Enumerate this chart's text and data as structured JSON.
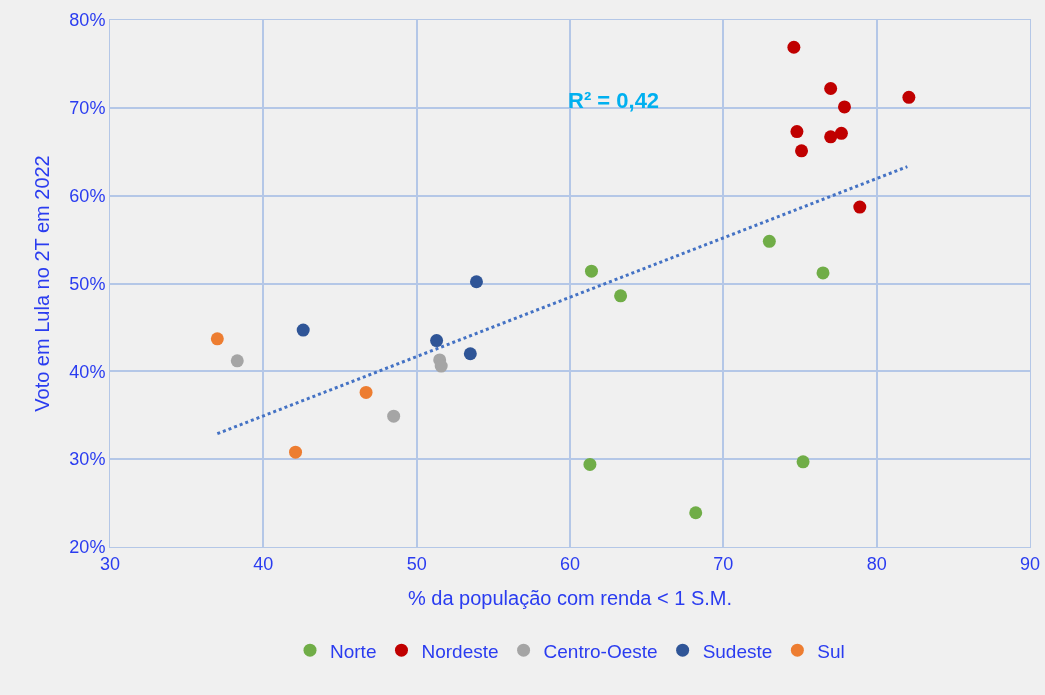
{
  "chart_data": {
    "type": "scatter",
    "xlabel": "% da população com renda < 1 S.M.",
    "ylabel": "Voto em Lula no 2T em 2022",
    "xlim": [
      30,
      90
    ],
    "xticks": [
      30,
      40,
      50,
      60,
      70,
      80,
      90
    ],
    "ylim": [
      20,
      80
    ],
    "yticks": [
      {
        "value": 20,
        "label": "20%"
      },
      {
        "value": 30,
        "label": "30%"
      },
      {
        "value": 40,
        "label": "40%"
      },
      {
        "value": 50,
        "label": "50%"
      },
      {
        "value": 60,
        "label": "60%"
      },
      {
        "value": 70,
        "label": "70%"
      },
      {
        "value": 80,
        "label": "80%"
      }
    ],
    "grid": true,
    "legend": "bottom",
    "marker": "circle",
    "annotations": [
      "R² = 0,42"
    ],
    "series": [
      {
        "name": "Norte",
        "color": "#70ad47",
        "x": [
          61.4,
          63.3,
          73.0,
          76.5,
          61.3,
          68.2,
          75.2
        ],
        "values": [
          51.4,
          48.6,
          54.8,
          51.2,
          29.4,
          23.9,
          29.7
        ]
      },
      {
        "name": "Nordeste",
        "color": "#c00000",
        "x": [
          74.6,
          77.0,
          77.9,
          82.1,
          74.8,
          77.0,
          77.7,
          75.1,
          78.9
        ],
        "values": [
          76.9,
          72.2,
          70.1,
          71.2,
          67.3,
          66.7,
          67.1,
          65.1,
          58.7
        ]
      },
      {
        "name": "Centro-Oeste",
        "color": "#a5a5a5",
        "x": [
          38.3,
          51.5,
          51.6,
          48.5
        ],
        "values": [
          41.2,
          41.3,
          40.6,
          34.9
        ]
      },
      {
        "name": "Sudeste",
        "color": "#2f5597",
        "x": [
          42.6,
          51.3,
          53.5,
          53.9
        ],
        "values": [
          44.7,
          43.5,
          42.0,
          50.2
        ]
      },
      {
        "name": "Sul",
        "color": "#ed7d31",
        "x": [
          37.0,
          46.7,
          42.1
        ],
        "values": [
          43.7,
          37.6,
          30.8
        ]
      },
      {
        "type": "line",
        "color": "#4472c4",
        "line_style": "dotted",
        "marker": "none",
        "x": [
          37,
          82
        ],
        "values": [
          32.9,
          63.3
        ]
      }
    ]
  }
}
